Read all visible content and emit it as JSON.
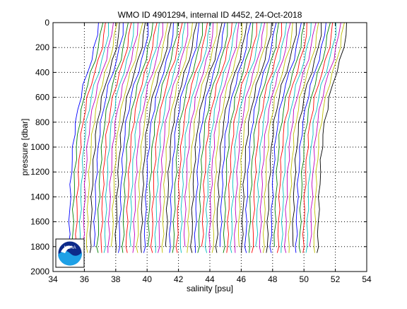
{
  "chart_data": {
    "type": "line",
    "title": "WMO ID 4901294, internal ID 4452, 24-Oct-2018",
    "xlabel": "salinity [psu]",
    "ylabel": "pressure [dbar]",
    "xlim": [
      34,
      54
    ],
    "ylim": [
      0,
      2000
    ],
    "y_reversed": true,
    "grid": true,
    "x_ticks": [
      34,
      36,
      38,
      40,
      42,
      44,
      46,
      48,
      50,
      52,
      54
    ],
    "y_ticks": [
      0,
      200,
      400,
      600,
      800,
      1000,
      1200,
      1400,
      1600,
      1800,
      2000
    ],
    "profile_pressures": [
      0,
      100,
      200,
      300,
      400,
      500,
      600,
      700,
      800,
      900,
      1000,
      1100,
      1200,
      1300,
      1400,
      1500,
      1600,
      1700,
      1800,
      1850
    ],
    "profile_count": 70,
    "profile_offset_step": 0.23,
    "profiles_first_offset": 0,
    "base_profile_salinity": [
      36.9,
      36.8,
      36.65,
      36.45,
      36.2,
      35.95,
      35.75,
      35.6,
      35.45,
      35.35,
      35.28,
      35.22,
      35.17,
      35.13,
      35.1,
      35.07,
      35.05,
      35.03,
      35.0,
      35.0
    ],
    "series_colors": [
      "#0000ff",
      "#008000",
      "#ff0000",
      "#00bfbf",
      "#bf00bf",
      "#bfbf00",
      "#000000"
    ],
    "logo": "noaa-logo"
  }
}
